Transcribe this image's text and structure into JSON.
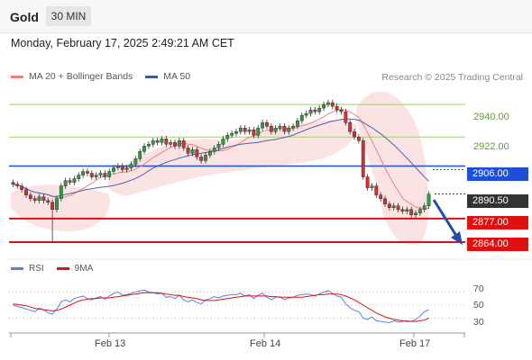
{
  "header": {
    "title": "Gold",
    "timeframe": "30 MIN"
  },
  "timestamp": "Monday, February 17, 2025 2:49:21 AM CET",
  "legend": [
    {
      "label": "MA 20 + Bollinger Bands",
      "color": "#f08080"
    },
    {
      "label": "MA 50",
      "color": "#3a5fa0"
    }
  ],
  "copyright": "Research © 2025 Trading Central",
  "levels": [
    {
      "value": "2940.00",
      "style": "green-line",
      "color": "#5a9e2e"
    },
    {
      "value": "2922.00",
      "style": "green-line",
      "color": "#5a9e2e"
    },
    {
      "value": "2906.00",
      "style": "blue-tag",
      "color": "#1f4fd8"
    },
    {
      "value": "2890.50",
      "style": "current-price",
      "color": "#333333"
    },
    {
      "value": "2877.00",
      "style": "red-tag",
      "color": "#e01010"
    },
    {
      "value": "2864.00",
      "style": "red-tag",
      "color": "#e01010"
    }
  ],
  "rsi_legend": [
    {
      "label": "RSI",
      "color": "#5b7fe0"
    },
    {
      "label": "9MA",
      "color": "#e01010"
    }
  ],
  "rsi_ticks": [
    "70",
    "50",
    "30"
  ],
  "x_dates": [
    "Feb 13",
    "Feb 14",
    "Feb 17"
  ],
  "chart_data": {
    "type": "candlestick",
    "symbol": "Gold",
    "interval": "30 MIN",
    "y_range": [
      2862,
      2946
    ],
    "close_series": [
      2896,
      2895,
      2893,
      2890,
      2888,
      2887,
      2889,
      2887,
      2886,
      2882,
      2888,
      2895,
      2898,
      2897,
      2899,
      2901,
      2903,
      2902,
      2900,
      2901,
      2902,
      2900,
      2903,
      2905,
      2906,
      2904,
      2905,
      2907,
      2910,
      2914,
      2917,
      2918,
      2920,
      2919,
      2921,
      2918,
      2919,
      2917,
      2920,
      2916,
      2913,
      2915,
      2911,
      2909,
      2912,
      2914,
      2916,
      2918,
      2921,
      2923,
      2924,
      2925,
      2927,
      2925,
      2926,
      2923,
      2927,
      2930,
      2928,
      2925,
      2927,
      2928,
      2925,
      2927,
      2928,
      2931,
      2934,
      2935,
      2937,
      2936,
      2938,
      2940,
      2941,
      2939,
      2937,
      2936,
      2930,
      2925,
      2922,
      2920,
      2900,
      2894,
      2895,
      2890,
      2888,
      2885,
      2883,
      2884,
      2882,
      2881,
      2882,
      2879,
      2880,
      2882,
      2884,
      2890.5
    ],
    "low_spike": {
      "value": 2864,
      "index": 9
    },
    "rsi": {
      "range": [
        10,
        90
      ],
      "rsi_values": [
        50,
        48,
        46,
        44,
        42,
        40,
        45,
        43,
        38,
        36,
        44,
        55,
        58,
        55,
        60,
        62,
        64,
        60,
        58,
        61,
        63,
        59,
        64,
        68,
        70,
        65,
        66,
        68,
        70,
        72,
        73,
        70,
        69,
        67,
        68,
        62,
        63,
        60,
        65,
        58,
        55,
        58,
        54,
        52,
        58,
        60,
        63,
        61,
        64,
        65,
        66,
        66,
        68,
        64,
        66,
        60,
        65,
        68,
        62,
        58,
        62,
        63,
        58,
        61,
        62,
        65,
        66,
        67,
        66,
        64,
        67,
        70,
        72,
        68,
        64,
        62,
        52,
        46,
        42,
        40,
        30,
        28,
        32,
        26,
        25,
        24,
        23,
        26,
        24,
        25,
        26,
        25,
        28,
        33,
        40,
        43
      ],
      "ma_values": [
        52,
        51,
        50,
        49,
        47,
        45,
        44,
        43,
        42,
        41,
        42,
        44,
        47,
        50,
        53,
        56,
        58,
        59,
        60,
        60,
        61,
        61,
        61,
        62,
        63,
        64,
        65,
        66,
        67,
        68,
        69,
        69,
        69,
        69,
        68,
        67,
        66,
        65,
        65,
        63,
        62,
        61,
        60,
        58,
        57,
        57,
        57,
        58,
        59,
        60,
        61,
        62,
        63,
        64,
        64,
        64,
        64,
        64,
        64,
        63,
        63,
        62,
        62,
        62,
        62,
        62,
        62,
        63,
        64,
        65,
        66,
        66,
        67,
        67,
        67,
        66,
        64,
        61,
        58,
        54,
        50,
        46,
        42,
        38,
        35,
        32,
        30,
        28,
        27,
        26,
        25,
        25,
        25,
        26,
        27,
        30
      ]
    }
  }
}
